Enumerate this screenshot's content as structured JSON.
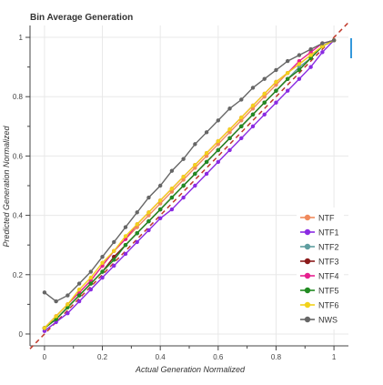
{
  "chart_data": {
    "type": "line",
    "title": "Bin Average Generation",
    "xlabel": "Actual Generation Normalized",
    "ylabel": "Predicted Generation Normalized",
    "xlim": [
      -0.05,
      1.05
    ],
    "ylim": [
      -0.04,
      1.04
    ],
    "x_ticks": [
      0,
      0.2,
      0.4,
      0.6,
      0.8,
      1
    ],
    "y_ticks": [
      0,
      0.2,
      0.4,
      0.6,
      0.8,
      1
    ],
    "x_tick_labels": [
      "0",
      "0.2",
      "0.4",
      "0.6",
      "0.8",
      "1"
    ],
    "y_tick_labels": [
      "0",
      "0.2",
      "0.4",
      "0.6",
      "0.8",
      "1"
    ],
    "grid": true,
    "legend_position": "bottom-right",
    "reference_line": {
      "x": [
        -0.05,
        1.05
      ],
      "y": [
        -0.05,
        1.05
      ],
      "color": "#c0392b",
      "style": "dashed"
    },
    "series": [
      {
        "name": "NTF",
        "color": "#f08a5d",
        "x": [
          0,
          0.04,
          0.08,
          0.12,
          0.16,
          0.2,
          0.24,
          0.28,
          0.32,
          0.36,
          0.4,
          0.44,
          0.48,
          0.52,
          0.56,
          0.6,
          0.64,
          0.68,
          0.72,
          0.76,
          0.8,
          0.84,
          0.88,
          0.92,
          0.96,
          1.0
        ],
        "y": [
          0.02,
          0.06,
          0.1,
          0.14,
          0.18,
          0.23,
          0.28,
          0.32,
          0.36,
          0.4,
          0.44,
          0.48,
          0.52,
          0.56,
          0.6,
          0.64,
          0.68,
          0.72,
          0.76,
          0.8,
          0.84,
          0.88,
          0.91,
          0.94,
          0.97,
          0.99
        ]
      },
      {
        "name": "NTF1",
        "color": "#8a2be2",
        "x": [
          0,
          0.04,
          0.08,
          0.12,
          0.16,
          0.2,
          0.24,
          0.28,
          0.32,
          0.36,
          0.4,
          0.44,
          0.48,
          0.52,
          0.56,
          0.6,
          0.64,
          0.68,
          0.72,
          0.76,
          0.8,
          0.84,
          0.88,
          0.92,
          0.96,
          1.0
        ],
        "y": [
          0.01,
          0.04,
          0.07,
          0.11,
          0.15,
          0.19,
          0.23,
          0.27,
          0.31,
          0.35,
          0.39,
          0.42,
          0.46,
          0.5,
          0.54,
          0.58,
          0.62,
          0.66,
          0.7,
          0.74,
          0.78,
          0.82,
          0.86,
          0.9,
          0.95,
          0.99
        ]
      },
      {
        "name": "NTF2",
        "color": "#5f9ea0",
        "x": [
          0,
          0.04,
          0.08,
          0.12,
          0.16,
          0.2,
          0.24,
          0.28,
          0.32,
          0.36,
          0.4,
          0.44,
          0.48,
          0.52,
          0.56,
          0.6,
          0.64,
          0.68,
          0.72,
          0.76,
          0.8,
          0.84,
          0.88,
          0.92,
          0.96,
          1.0
        ],
        "y": [
          0.02,
          0.05,
          0.09,
          0.13,
          0.17,
          0.21,
          0.26,
          0.3,
          0.34,
          0.38,
          0.42,
          0.46,
          0.5,
          0.54,
          0.58,
          0.62,
          0.66,
          0.7,
          0.74,
          0.78,
          0.82,
          0.86,
          0.9,
          0.93,
          0.97,
          0.99
        ]
      },
      {
        "name": "NTF3",
        "color": "#8b1a1a",
        "x": [
          0,
          0.04,
          0.08,
          0.12,
          0.16,
          0.2,
          0.24,
          0.28,
          0.32,
          0.36,
          0.4,
          0.44,
          0.48,
          0.52,
          0.56,
          0.6,
          0.64,
          0.68,
          0.72,
          0.76,
          0.8,
          0.84,
          0.88,
          0.92,
          0.96,
          1.0
        ],
        "y": [
          0.02,
          0.05,
          0.09,
          0.13,
          0.17,
          0.21,
          0.26,
          0.3,
          0.34,
          0.38,
          0.42,
          0.46,
          0.5,
          0.54,
          0.58,
          0.62,
          0.66,
          0.7,
          0.74,
          0.78,
          0.82,
          0.86,
          0.89,
          0.93,
          0.97,
          0.99
        ]
      },
      {
        "name": "NTF4",
        "color": "#e6208f",
        "x": [
          0,
          0.04,
          0.08,
          0.12,
          0.16,
          0.2,
          0.24,
          0.28,
          0.32,
          0.36,
          0.4,
          0.44,
          0.48,
          0.52,
          0.56,
          0.6,
          0.64,
          0.68,
          0.72,
          0.76,
          0.8,
          0.84,
          0.88,
          0.92,
          0.96,
          1.0
        ],
        "y": [
          0.02,
          0.06,
          0.1,
          0.14,
          0.18,
          0.23,
          0.28,
          0.32,
          0.37,
          0.41,
          0.45,
          0.49,
          0.53,
          0.57,
          0.61,
          0.65,
          0.69,
          0.73,
          0.77,
          0.81,
          0.85,
          0.88,
          0.92,
          0.95,
          0.98,
          0.99
        ]
      },
      {
        "name": "NTF5",
        "color": "#228b22",
        "x": [
          0,
          0.04,
          0.08,
          0.12,
          0.16,
          0.2,
          0.24,
          0.28,
          0.32,
          0.36,
          0.4,
          0.44,
          0.48,
          0.52,
          0.56,
          0.6,
          0.64,
          0.68,
          0.72,
          0.76,
          0.8,
          0.84,
          0.88,
          0.92,
          0.96,
          1.0
        ],
        "y": [
          0.02,
          0.05,
          0.09,
          0.13,
          0.17,
          0.21,
          0.25,
          0.3,
          0.34,
          0.38,
          0.42,
          0.46,
          0.5,
          0.54,
          0.58,
          0.62,
          0.66,
          0.7,
          0.74,
          0.78,
          0.82,
          0.86,
          0.89,
          0.93,
          0.97,
          0.99
        ]
      },
      {
        "name": "NTF6",
        "color": "#f2d21b",
        "x": [
          0,
          0.04,
          0.08,
          0.12,
          0.16,
          0.2,
          0.24,
          0.28,
          0.32,
          0.36,
          0.4,
          0.44,
          0.48,
          0.52,
          0.56,
          0.6,
          0.64,
          0.68,
          0.72,
          0.76,
          0.8,
          0.84,
          0.88,
          0.92,
          0.96,
          1.0
        ],
        "y": [
          0.02,
          0.06,
          0.1,
          0.15,
          0.19,
          0.24,
          0.28,
          0.33,
          0.37,
          0.41,
          0.45,
          0.49,
          0.53,
          0.57,
          0.61,
          0.65,
          0.69,
          0.73,
          0.77,
          0.81,
          0.85,
          0.88,
          0.91,
          0.94,
          0.97,
          0.99
        ]
      },
      {
        "name": "NWS",
        "color": "#666666",
        "x": [
          0,
          0.04,
          0.08,
          0.12,
          0.16,
          0.2,
          0.24,
          0.28,
          0.32,
          0.36,
          0.4,
          0.44,
          0.48,
          0.52,
          0.56,
          0.6,
          0.64,
          0.68,
          0.72,
          0.76,
          0.8,
          0.84,
          0.88,
          0.92,
          0.96,
          1.0
        ],
        "y": [
          0.14,
          0.11,
          0.13,
          0.17,
          0.21,
          0.26,
          0.31,
          0.36,
          0.41,
          0.46,
          0.5,
          0.55,
          0.59,
          0.64,
          0.68,
          0.72,
          0.76,
          0.79,
          0.83,
          0.86,
          0.89,
          0.92,
          0.94,
          0.96,
          0.98,
          0.99
        ]
      }
    ]
  }
}
